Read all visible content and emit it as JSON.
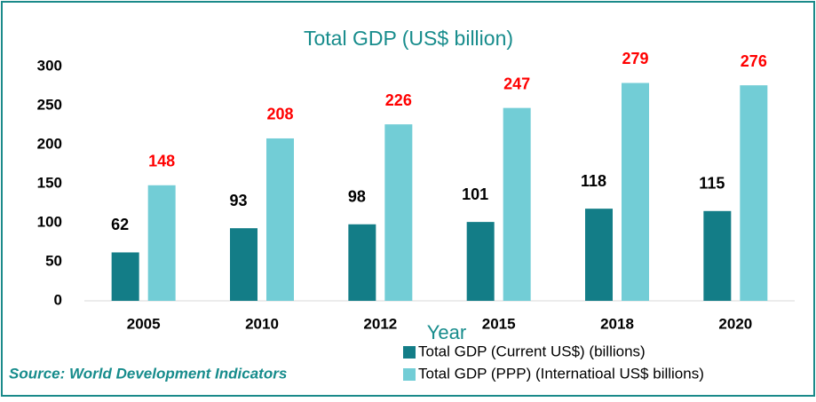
{
  "chart_data": {
    "type": "bar",
    "title": "Total GDP  (US$ billion)",
    "x_label": "Year",
    "source": "Source: World Development Indicators",
    "categories": [
      "2005",
      "2010",
      "2012",
      "2015",
      "2018",
      "2020"
    ],
    "series": [
      {
        "name": "Total GDP (Current US$) (billions)",
        "color": "#137d87",
        "label_color": "#000000",
        "values": [
          62,
          93,
          98,
          101,
          118,
          115
        ]
      },
      {
        "name": "Total GDP (PPP) (Internatioal US$ billions)",
        "color": "#72cdd6",
        "label_color": "#ff0000",
        "values": [
          148,
          208,
          226,
          247,
          279,
          276
        ]
      }
    ],
    "ylim": [
      0,
      300
    ],
    "yticks": [
      0,
      50,
      100,
      150,
      200,
      250,
      300
    ],
    "grid": false
  }
}
